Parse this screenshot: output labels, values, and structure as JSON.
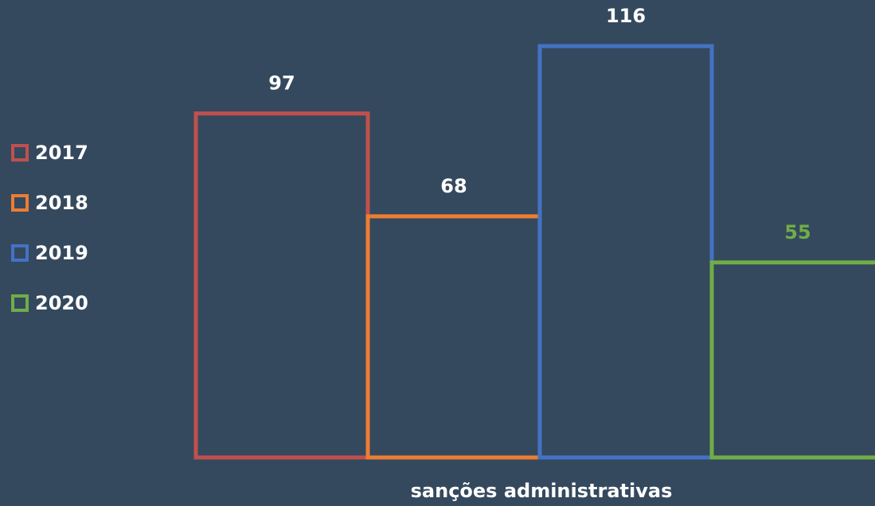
{
  "chart_data": {
    "type": "bar",
    "categories": [
      "sanções administrativas"
    ],
    "series": [
      {
        "name": "2017",
        "color": "#c0504d",
        "label_color": "#ffffff",
        "values": [
          97
        ]
      },
      {
        "name": "2018",
        "color": "#ed7d31",
        "label_color": "#ffffff",
        "values": [
          68
        ]
      },
      {
        "name": "2019",
        "color": "#4472c4",
        "label_color": "#ffffff",
        "values": [
          116
        ]
      },
      {
        "name": "2020",
        "color": "#70ad47",
        "label_color": "#70ad47",
        "values": [
          55
        ]
      }
    ],
    "ylim": [
      0,
      129
    ],
    "legend": "left"
  }
}
